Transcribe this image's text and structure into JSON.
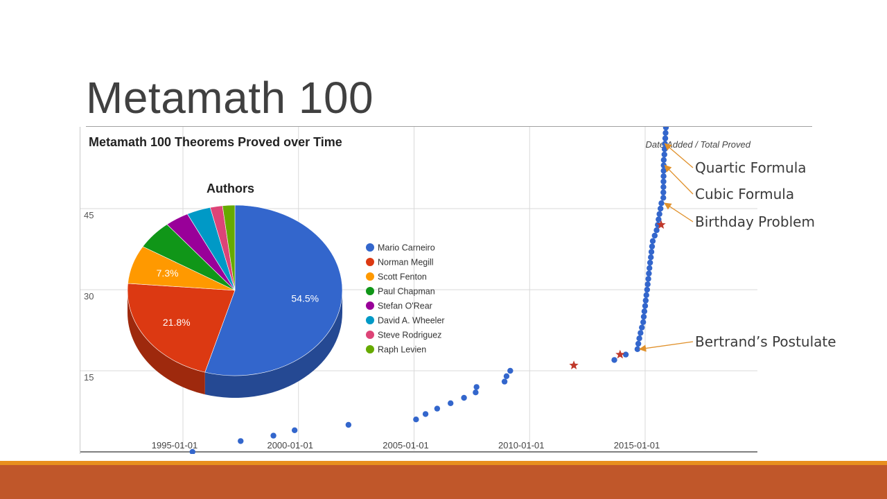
{
  "slide": {
    "title": "Metamath 100"
  },
  "callouts": [
    {
      "label": "Quartic Formula",
      "date": "2015-10-18",
      "y": 57
    },
    {
      "label": "Cubic Formula",
      "date": "2015-10-17",
      "y": 53
    },
    {
      "label": "Birthday Problem",
      "date": "2015-10-15",
      "y": 46
    },
    {
      "label": "Bertrand’s Postulate",
      "date": "2014-09-15",
      "y": 19
    }
  ],
  "chart_data": [
    {
      "type": "scatter",
      "title": "Metamath 100 Theorems Proved over Time",
      "subtitle": "Date Added / Total Proved",
      "x_tick_labels": [
        "1995-01-01",
        "2000-01-01",
        "2005-01-01",
        "2010-01-01",
        "2015-01-01"
      ],
      "y_tick_labels": [
        "15",
        "30",
        "45"
      ],
      "xlim": [
        "1995-01-01",
        "2016-06-01"
      ],
      "ylim": [
        0,
        60
      ],
      "grid": true,
      "series": [
        {
          "color": "#3366cc",
          "marker": "circle",
          "points": [
            {
              "x": "1995-06-01",
              "y": 0
            },
            {
              "x": "1997-07-01",
              "y": 2
            },
            {
              "x": "1998-12-01",
              "y": 3
            },
            {
              "x": "1999-11-01",
              "y": 4
            },
            {
              "x": "2002-03-01",
              "y": 5
            },
            {
              "x": "2005-02-01",
              "y": 6
            },
            {
              "x": "2005-07-01",
              "y": 7
            },
            {
              "x": "2006-01-01",
              "y": 8
            },
            {
              "x": "2006-08-01",
              "y": 9
            },
            {
              "x": "2007-03-01",
              "y": 10
            },
            {
              "x": "2007-09-01",
              "y": 11
            },
            {
              "x": "2007-09-15",
              "y": 12
            },
            {
              "x": "2008-12-01",
              "y": 13
            },
            {
              "x": "2009-01-01",
              "y": 14
            },
            {
              "x": "2009-03-01",
              "y": 15
            },
            {
              "x": "2013-09-01",
              "y": 17
            },
            {
              "x": "2014-03-01",
              "y": 18
            },
            {
              "x": "2014-09-01",
              "y": 19
            },
            {
              "x": "2014-09-15",
              "y": 20
            },
            {
              "x": "2014-10-01",
              "y": 21
            },
            {
              "x": "2014-10-20",
              "y": 22
            },
            {
              "x": "2014-11-10",
              "y": 23
            },
            {
              "x": "2014-12-01",
              "y": 24
            },
            {
              "x": "2014-12-10",
              "y": 25
            },
            {
              "x": "2014-12-20",
              "y": 26
            },
            {
              "x": "2015-01-01",
              "y": 27
            },
            {
              "x": "2015-01-10",
              "y": 28
            },
            {
              "x": "2015-01-20",
              "y": 29
            },
            {
              "x": "2015-02-01",
              "y": 30
            },
            {
              "x": "2015-02-10",
              "y": 31
            },
            {
              "x": "2015-02-20",
              "y": 32
            },
            {
              "x": "2015-03-01",
              "y": 33
            },
            {
              "x": "2015-03-10",
              "y": 34
            },
            {
              "x": "2015-03-20",
              "y": 35
            },
            {
              "x": "2015-04-01",
              "y": 36
            },
            {
              "x": "2015-04-10",
              "y": 37
            },
            {
              "x": "2015-04-20",
              "y": 38
            },
            {
              "x": "2015-05-01",
              "y": 39
            },
            {
              "x": "2015-06-01",
              "y": 40
            },
            {
              "x": "2015-07-01",
              "y": 41
            },
            {
              "x": "2015-07-20",
              "y": 42
            },
            {
              "x": "2015-08-01",
              "y": 43
            },
            {
              "x": "2015-08-15",
              "y": 44
            },
            {
              "x": "2015-09-01",
              "y": 45
            },
            {
              "x": "2015-09-15",
              "y": 46
            },
            {
              "x": "2015-10-15",
              "y": 47
            },
            {
              "x": "2015-10-16",
              "y": 48
            },
            {
              "x": "2015-10-17",
              "y": 49
            },
            {
              "x": "2015-10-18",
              "y": 50
            },
            {
              "x": "2015-10-19",
              "y": 51
            },
            {
              "x": "2015-10-20",
              "y": 52
            },
            {
              "x": "2015-10-21",
              "y": 53
            },
            {
              "x": "2015-10-22",
              "y": 54
            },
            {
              "x": "2015-11-01",
              "y": 55
            },
            {
              "x": "2015-11-05",
              "y": 56
            },
            {
              "x": "2015-11-10",
              "y": 57
            },
            {
              "x": "2015-11-15",
              "y": 58
            },
            {
              "x": "2015-11-20",
              "y": 59
            },
            {
              "x": "2015-11-25",
              "y": 60
            },
            {
              "x": "2015-12-01",
              "y": 61
            }
          ]
        },
        {
          "color": "#c0392b",
          "marker": "star",
          "points": [
            {
              "x": "2011-12-01",
              "y": 16
            },
            {
              "x": "2013-12-01",
              "y": 18
            },
            {
              "x": "2015-09-10",
              "y": 42
            }
          ]
        }
      ]
    },
    {
      "type": "pie",
      "title": "Authors",
      "series": [
        {
          "name": "Mario Carneiro",
          "value": 54.5,
          "label": "54.5%",
          "color": "#3366cc"
        },
        {
          "name": "Norman Megill",
          "value": 21.8,
          "label": "21.8%",
          "color": "#dc3912"
        },
        {
          "name": "Scott Fenton",
          "value": 7.3,
          "label": "7.3%",
          "color": "#ff9900"
        },
        {
          "name": "Paul Chapman",
          "value": 5.5,
          "label": "",
          "color": "#109618"
        },
        {
          "name": "Stefan O'Rear",
          "value": 3.6,
          "label": "",
          "color": "#990099"
        },
        {
          "name": "David A. Wheeler",
          "value": 3.6,
          "label": "",
          "color": "#0099c6"
        },
        {
          "name": "Steve Rodriguez",
          "value": 1.85,
          "label": "",
          "color": "#dd4477"
        },
        {
          "name": "Raph Levien",
          "value": 1.85,
          "label": "",
          "color": "#66aa00"
        }
      ],
      "legend_position": "right"
    }
  ]
}
